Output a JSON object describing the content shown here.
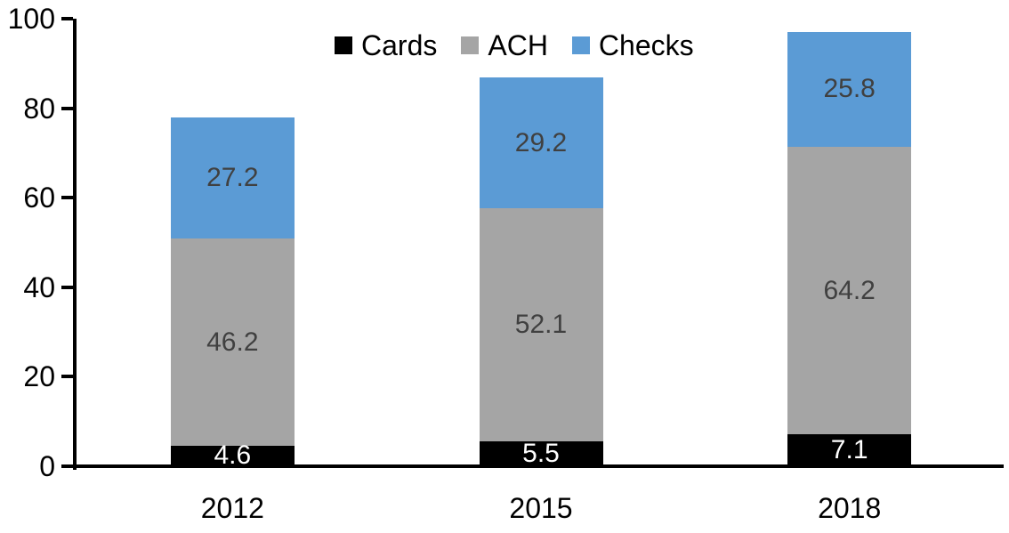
{
  "chart_data": {
    "type": "bar",
    "stacked": true,
    "title": "",
    "xlabel": "",
    "ylabel": "",
    "categories": [
      "2012",
      "2015",
      "2018"
    ],
    "series": [
      {
        "name": "Cards",
        "color": "#000000",
        "label_color": "#ffffff",
        "values": [
          4.6,
          5.5,
          7.1
        ]
      },
      {
        "name": "ACH",
        "color": "#a5a5a5",
        "label_color": "#404040",
        "values": [
          46.2,
          52.1,
          64.2
        ]
      },
      {
        "name": "Checks",
        "color": "#5b9bd5",
        "label_color": "#404040",
        "values": [
          27.2,
          29.2,
          25.8
        ]
      }
    ],
    "ylim": [
      0,
      100
    ],
    "yticks": [
      0,
      20,
      40,
      60,
      80,
      100
    ],
    "grid": false,
    "data_labels": true,
    "legend_position": "top",
    "axis_color": "#000000"
  }
}
